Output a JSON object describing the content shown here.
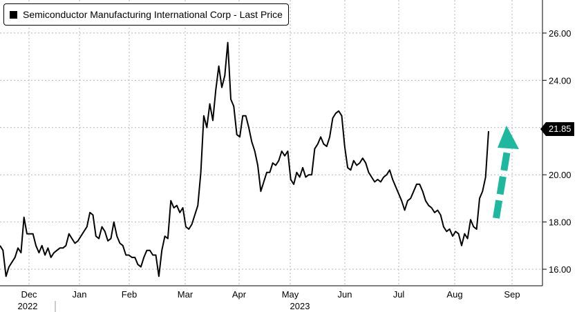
{
  "chart_data": {
    "type": "line",
    "title": "",
    "legend": {
      "label": "Semiconductor Manufacturing International Corp - Last Price",
      "placement": "top-left"
    },
    "xlabel": "",
    "ylabel": "",
    "x_ticks": [
      "Dec",
      "Jan",
      "Feb",
      "Mar",
      "Apr",
      "May",
      "Jun",
      "Jul",
      "Aug",
      "Sep"
    ],
    "year_labels": [
      "2022",
      "2023"
    ],
    "y_ticks": [
      "16.00",
      "18.00",
      "20.00",
      "22.00",
      "24.00",
      "26.00"
    ],
    "ylim": [
      15.3,
      27.4
    ],
    "grid": true,
    "series": [
      {
        "name": "Semiconductor Manufacturing International Corp - Last Price",
        "color": "#000000",
        "values": [
          17.0,
          16.8,
          15.7,
          16.1,
          16.3,
          16.5,
          16.9,
          16.7,
          18.2,
          17.5,
          17.5,
          17.5,
          17.0,
          16.7,
          17.0,
          16.6,
          16.9,
          16.5,
          16.7,
          16.8,
          16.9,
          16.9,
          17.0,
          17.5,
          17.3,
          17.1,
          17.2,
          17.4,
          17.6,
          17.8,
          18.4,
          18.3,
          17.4,
          17.3,
          17.8,
          17.6,
          17.2,
          17.3,
          18.0,
          17.4,
          17.1,
          17.0,
          16.6,
          16.6,
          16.5,
          16.5,
          16.2,
          16.1,
          16.5,
          16.8,
          16.8,
          16.6,
          16.6,
          15.7,
          16.8,
          17.4,
          17.3,
          18.9,
          18.6,
          18.7,
          18.4,
          18.6,
          17.8,
          17.7,
          17.9,
          18.3,
          18.7,
          20.1,
          22.5,
          22.0,
          23.0,
          22.3,
          23.6,
          24.6,
          23.7,
          24.2,
          25.6,
          23.2,
          22.9,
          21.7,
          21.6,
          22.5,
          22.5,
          22.0,
          21.4,
          21.0,
          20.4,
          19.3,
          19.7,
          20.1,
          20.1,
          20.5,
          20.4,
          20.6,
          21.0,
          20.8,
          21.0,
          19.8,
          19.6,
          20.1,
          19.9,
          20.3,
          19.9,
          20.0,
          20.0,
          21.1,
          21.3,
          21.6,
          21.3,
          21.2,
          21.6,
          22.4,
          22.6,
          22.7,
          22.5,
          21.2,
          20.3,
          20.2,
          20.6,
          20.4,
          20.5,
          20.7,
          20.5,
          20.1,
          19.9,
          19.7,
          19.8,
          19.7,
          19.9,
          20.0,
          20.2,
          19.8,
          19.5,
          19.2,
          18.9,
          18.5,
          18.9,
          19.0,
          19.3,
          19.6,
          19.6,
          19.3,
          18.9,
          18.7,
          18.6,
          18.4,
          18.5,
          18.3,
          17.8,
          17.6,
          17.7,
          17.4,
          17.6,
          17.5,
          17.0,
          17.5,
          17.3,
          18.1,
          17.8,
          17.7,
          19.0,
          19.3,
          19.9,
          21.85
        ]
      }
    ],
    "last_value": {
      "label": "21.85",
      "value": 21.85,
      "color": "#000000"
    },
    "annotation": {
      "type": "dashed-up-arrow",
      "color": "#1db89e"
    }
  }
}
